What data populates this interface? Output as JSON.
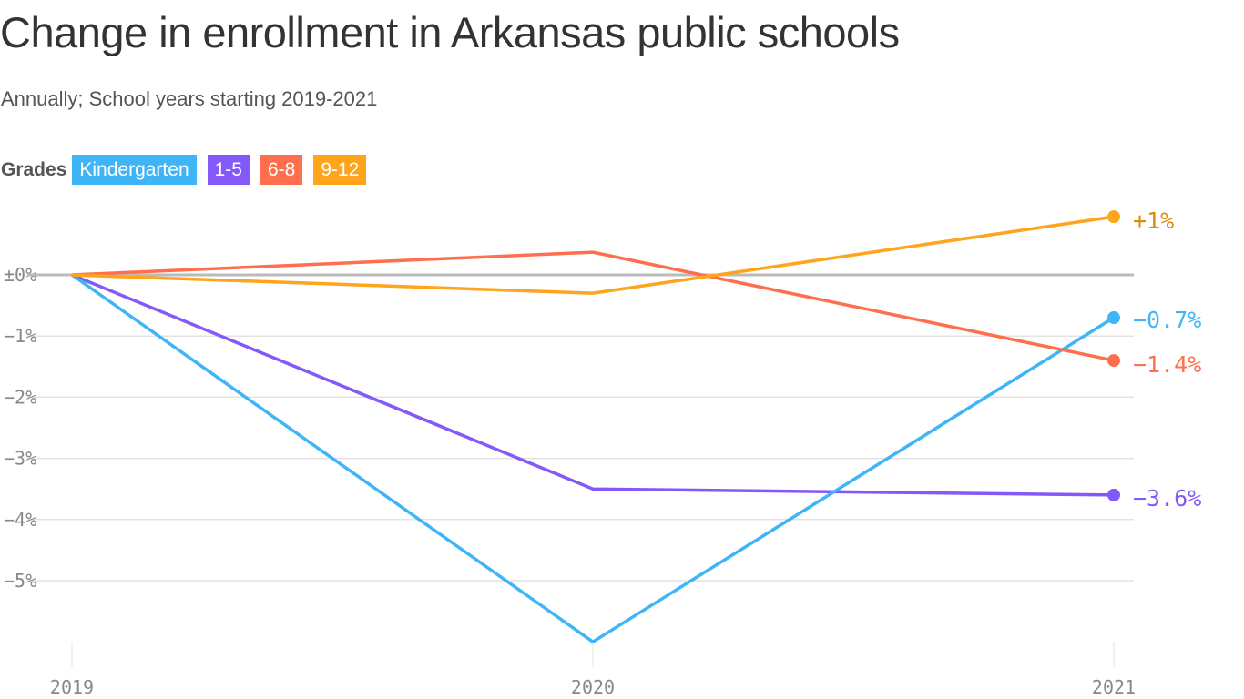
{
  "header": {
    "title": "Change in enrollment in Arkansas public schools",
    "subtitle": "Annually; School years starting 2019-2021"
  },
  "legend": {
    "label": "Grades",
    "items": [
      {
        "label": "Kindergarten",
        "color": "#3FB5F8"
      },
      {
        "label": "1-5",
        "color": "#8459F9"
      },
      {
        "label": "6-8",
        "color": "#FF6F4E"
      },
      {
        "label": "9-12",
        "color": "#FFA41B"
      }
    ]
  },
  "chart_data": {
    "type": "line",
    "title": "Change in enrollment in Arkansas public schools",
    "subtitle": "Annually; School years starting 2019-2021",
    "xlabel": "",
    "ylabel": "",
    "x": [
      "2019",
      "2020",
      "2021"
    ],
    "yticks": [
      "±0%",
      "−1%",
      "−2%",
      "−3%",
      "−4%",
      "−5%"
    ],
    "ytick_values": [
      0,
      -1,
      -2,
      -3,
      -4,
      -5
    ],
    "ylim": [
      -6.1,
      1.0
    ],
    "grid": true,
    "legend_position": "top-left",
    "series": [
      {
        "name": "Kindergarten",
        "color": "#3FB5F8",
        "values": [
          0,
          -6.0,
          -0.7
        ],
        "end_label": "−0.7%",
        "label_color": "#3FB5F8"
      },
      {
        "name": "1-5",
        "color": "#8459F9",
        "values": [
          0,
          -3.5,
          -3.6
        ],
        "end_label": "−3.6%",
        "label_color": "#8459F9"
      },
      {
        "name": "6-8",
        "color": "#FF6F4E",
        "values": [
          0,
          0.37,
          -1.4
        ],
        "end_label": "−1.4%",
        "label_color": "#FF6F4E"
      },
      {
        "name": "9-12",
        "color": "#FFA41B",
        "values": [
          0,
          -0.3,
          0.95
        ],
        "end_label": "+1%",
        "label_color": "#DB8A0C"
      }
    ]
  }
}
